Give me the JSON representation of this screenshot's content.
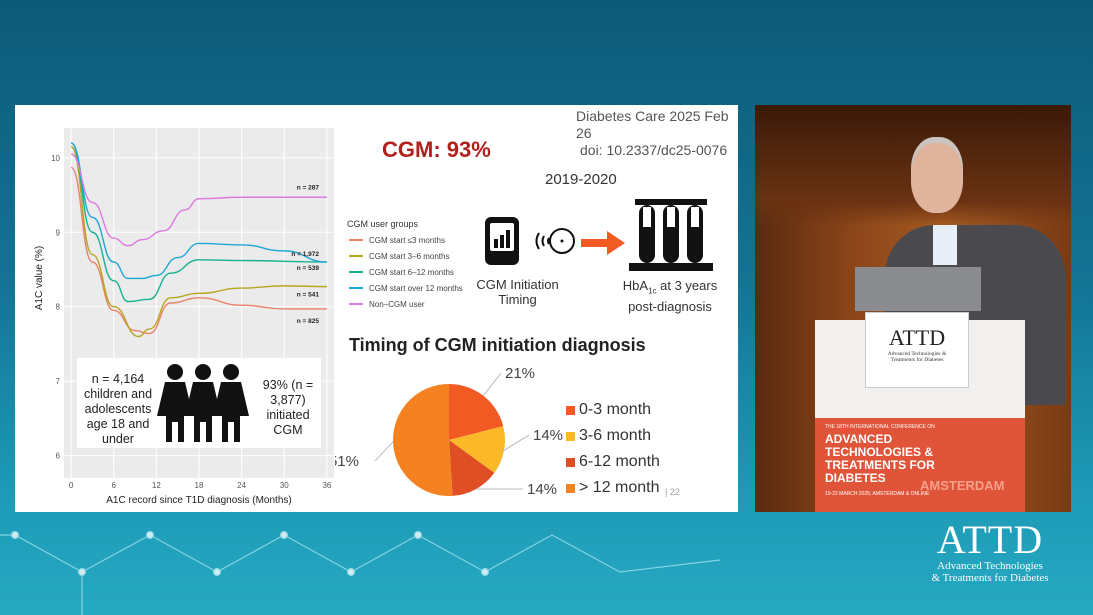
{
  "slide": {
    "citation_line1": "Diabetes Care 2025 Feb 26",
    "citation_line2": "doi: 10.2337/dc25-0076",
    "headline": "CGM: 93%",
    "period": "2019-2020",
    "legend_title": "CGM user groups",
    "cgm_caption": "CGM Initiation Timing",
    "hba1c_caption_pre": "HbA",
    "hba1c_caption_sub": "1c",
    "hba1c_caption_post": " at 3 years post-diagnosis",
    "info_left": "n = 4,164 children and adolescents age 18 and under",
    "info_right": "93% (n = 3,877) initiated CGM",
    "page_number": "22"
  },
  "chart_data": [
    {
      "type": "line",
      "title": "",
      "xlabel": "A1C record since T1D diagnosis (Months)",
      "ylabel": "A1C value (%)",
      "xlim": [
        -1,
        37
      ],
      "ylim": [
        5.7,
        10.4
      ],
      "xticks": [
        0,
        6,
        12,
        18,
        24,
        30,
        36
      ],
      "yticks": [
        6,
        7,
        8,
        9,
        10
      ],
      "grid": true,
      "series": [
        {
          "name": "CGM start ≤3 months",
          "color": "#e8826a",
          "n_label": "n = 825",
          "points": [
            [
              0,
              9.87
            ],
            [
              3,
              8.6
            ],
            [
              6,
              7.95
            ],
            [
              9,
              7.68
            ],
            [
              11,
              7.64
            ],
            [
              14,
              8.05
            ],
            [
              18,
              8.12
            ],
            [
              24,
              8.02
            ],
            [
              30,
              7.97
            ],
            [
              36,
              7.97
            ]
          ]
        },
        {
          "name": "CGM start 3–6 months",
          "color": "#b5a620",
          "n_label": "n = 541",
          "points": [
            [
              0,
              10.15
            ],
            [
              3,
              8.7
            ],
            [
              6,
              8.0
            ],
            [
              9.5,
              7.6
            ],
            [
              11,
              7.7
            ],
            [
              14,
              8.12
            ],
            [
              18,
              8.18
            ],
            [
              24,
              8.25
            ],
            [
              30,
              8.28
            ],
            [
              36,
              8.27
            ]
          ]
        },
        {
          "name": "CGM start 6–12 months",
          "color": "#16b28e",
          "n_label": "n = 539",
          "points": [
            [
              0,
              10.2
            ],
            [
              3,
              9.0
            ],
            [
              6,
              8.35
            ],
            [
              8,
              8.07
            ],
            [
              11,
              8.1
            ],
            [
              14,
              8.45
            ],
            [
              18,
              8.63
            ],
            [
              24,
              8.62
            ],
            [
              36,
              8.6
            ]
          ]
        },
        {
          "name": "CGM start over 12 months",
          "color": "#1ea6d6",
          "n_label": "n = 1,972",
          "points": [
            [
              0,
              10.2
            ],
            [
              3,
              9.2
            ],
            [
              6,
              8.6
            ],
            [
              8,
              8.38
            ],
            [
              10,
              8.38
            ],
            [
              12,
              8.42
            ],
            [
              15,
              8.66
            ],
            [
              18,
              8.85
            ],
            [
              24,
              8.83
            ],
            [
              30,
              8.75
            ],
            [
              36,
              8.6
            ]
          ]
        },
        {
          "name": "Non–CGM user",
          "color": "#de7ae0",
          "n_label": "n = 287",
          "points": [
            [
              0,
              10.05
            ],
            [
              3,
              9.4
            ],
            [
              6,
              8.92
            ],
            [
              8,
              8.82
            ],
            [
              10,
              8.9
            ],
            [
              13,
              9.02
            ],
            [
              16,
              9.3
            ],
            [
              18,
              9.45
            ],
            [
              24,
              9.47
            ],
            [
              36,
              9.47
            ]
          ]
        }
      ]
    },
    {
      "type": "pie",
      "title": "Timing of CGM initiation diagnosis",
      "slices": [
        {
          "label": "0-3 month",
          "value": 21,
          "text": "21%",
          "color": "#f15a22"
        },
        {
          "label": "3-6 month",
          "value": 14,
          "text": "14%",
          "color": "#fbb829"
        },
        {
          "label": "6-12 month",
          "value": 14,
          "text": "14%",
          "color": "#e04e24"
        },
        {
          "label": "> 12 month",
          "value": 51,
          "text": "51%",
          "color": "#f58220"
        }
      ]
    }
  ],
  "podium": {
    "sign_logo": "ATTD",
    "sign_sub": "Advanced Technologies & Treatments for Diabetes",
    "banner_kicker": "THE 18TH INTERNATIONAL CONFERENCE ON",
    "banner_title": "ADVANCED TECHNOLOGIES & TREATMENTS FOR DIABETES",
    "banner_city": "AMSTERDAM",
    "banner_dates": "19-22 MARCH 2025, AMSTERDAM & ONLINE"
  },
  "watermark": {
    "logo": "ATTD",
    "line1": "Advanced Technologies",
    "line2": "& Treatments for Diabetes"
  }
}
